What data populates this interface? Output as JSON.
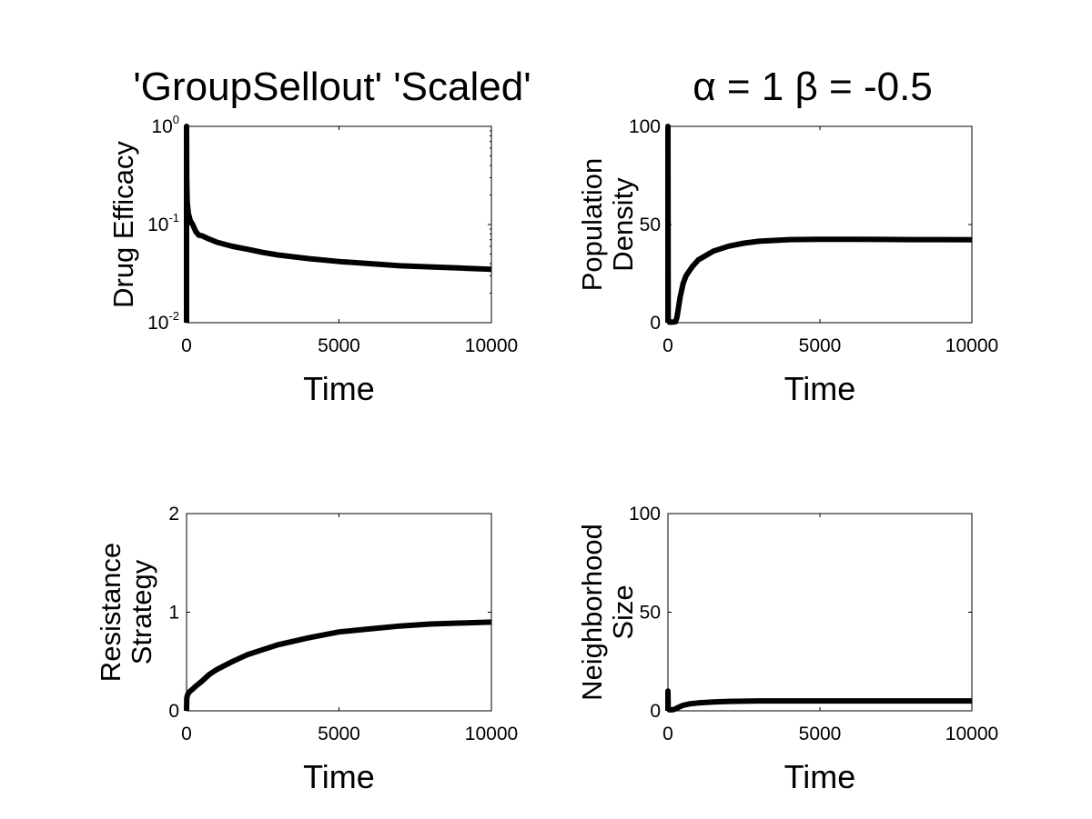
{
  "figure": {
    "title_left": "'GroupSellout' 'Scaled'",
    "title_right": "α = 1 β = -0.5"
  },
  "chart_data": [
    {
      "type": "line",
      "title": "'GroupSellout' 'Scaled'",
      "xlabel": "Time",
      "ylabel": "Drug Efficacy",
      "xlim": [
        0,
        10000
      ],
      "ylim": [
        0.01,
        1
      ],
      "yscale": "log",
      "x_ticks": [
        "0",
        "5000",
        "10000"
      ],
      "y_ticks": [
        "10^-2",
        "10^-1",
        "10^0"
      ],
      "grid": false,
      "series": [
        {
          "x": [
            0,
            0,
            5,
            20,
            60,
            120,
            200,
            300,
            400,
            500,
            700,
            1000,
            1500,
            2000,
            2500,
            3000,
            4000,
            5000,
            6000,
            7000,
            8000,
            9000,
            10000
          ],
          "values": [
            0.01,
            1,
            0.3,
            0.17,
            0.13,
            0.11,
            0.1,
            0.085,
            0.078,
            0.077,
            0.072,
            0.066,
            0.06,
            0.056,
            0.052,
            0.049,
            0.045,
            0.042,
            0.04,
            0.038,
            0.037,
            0.036,
            0.035
          ]
        }
      ]
    },
    {
      "type": "line",
      "title": "α = 1 β = -0.5",
      "xlabel": "Time",
      "ylabel": "Population\nDensity",
      "xlim": [
        0,
        10000
      ],
      "ylim": [
        0,
        100
      ],
      "yscale": "linear",
      "x_ticks": [
        "0",
        "5000",
        "10000"
      ],
      "y_ticks": [
        "0",
        "50",
        "100"
      ],
      "grid": false,
      "series": [
        {
          "x": [
            0,
            0,
            10,
            50,
            150,
            250,
            300,
            350,
            400,
            500,
            600,
            800,
            1000,
            1500,
            2000,
            2500,
            3000,
            4000,
            5000,
            6000,
            7000,
            8000,
            9000,
            10000
          ],
          "values": [
            0,
            100,
            2,
            0.3,
            0.3,
            0.5,
            3,
            8,
            13,
            20,
            24,
            28.5,
            32,
            36.5,
            39,
            40.5,
            41.5,
            42.3,
            42.5,
            42.5,
            42.4,
            42.3,
            42.3,
            42.2
          ]
        }
      ]
    },
    {
      "type": "line",
      "xlabel": "Time",
      "ylabel": "Resistance\nStrategy",
      "xlim": [
        0,
        10000
      ],
      "ylim": [
        0,
        2
      ],
      "yscale": "linear",
      "x_ticks": [
        "0",
        "5000",
        "10000"
      ],
      "y_ticks": [
        "0",
        "1",
        "2"
      ],
      "grid": false,
      "series": [
        {
          "x": [
            0,
            5,
            20,
            60,
            120,
            200,
            300,
            500,
            750,
            1000,
            1500,
            2000,
            2500,
            3000,
            4000,
            5000,
            6000,
            7000,
            8000,
            9000,
            10000
          ],
          "values": [
            0,
            0.12,
            0.15,
            0.18,
            0.2,
            0.22,
            0.25,
            0.3,
            0.37,
            0.42,
            0.5,
            0.57,
            0.62,
            0.67,
            0.74,
            0.8,
            0.83,
            0.86,
            0.88,
            0.89,
            0.9
          ]
        }
      ]
    },
    {
      "type": "line",
      "xlabel": "Time",
      "ylabel": "Neighborhood\nSize",
      "xlim": [
        0,
        10000
      ],
      "ylim": [
        0,
        100
      ],
      "yscale": "linear",
      "x_ticks": [
        "0",
        "5000",
        "10000"
      ],
      "y_ticks": [
        "0",
        "50",
        "100"
      ],
      "grid": false,
      "series": [
        {
          "x": [
            0,
            0,
            10,
            50,
            150,
            250,
            350,
            500,
            700,
            1000,
            1500,
            2000,
            3000,
            4000,
            5000,
            6000,
            7000,
            8000,
            9000,
            10000
          ],
          "values": [
            0,
            10,
            1,
            0.5,
            0.5,
            1,
            1.8,
            2.8,
            3.5,
            4,
            4.5,
            4.8,
            5,
            5,
            5,
            5,
            5,
            5,
            5,
            5
          ]
        }
      ]
    }
  ]
}
